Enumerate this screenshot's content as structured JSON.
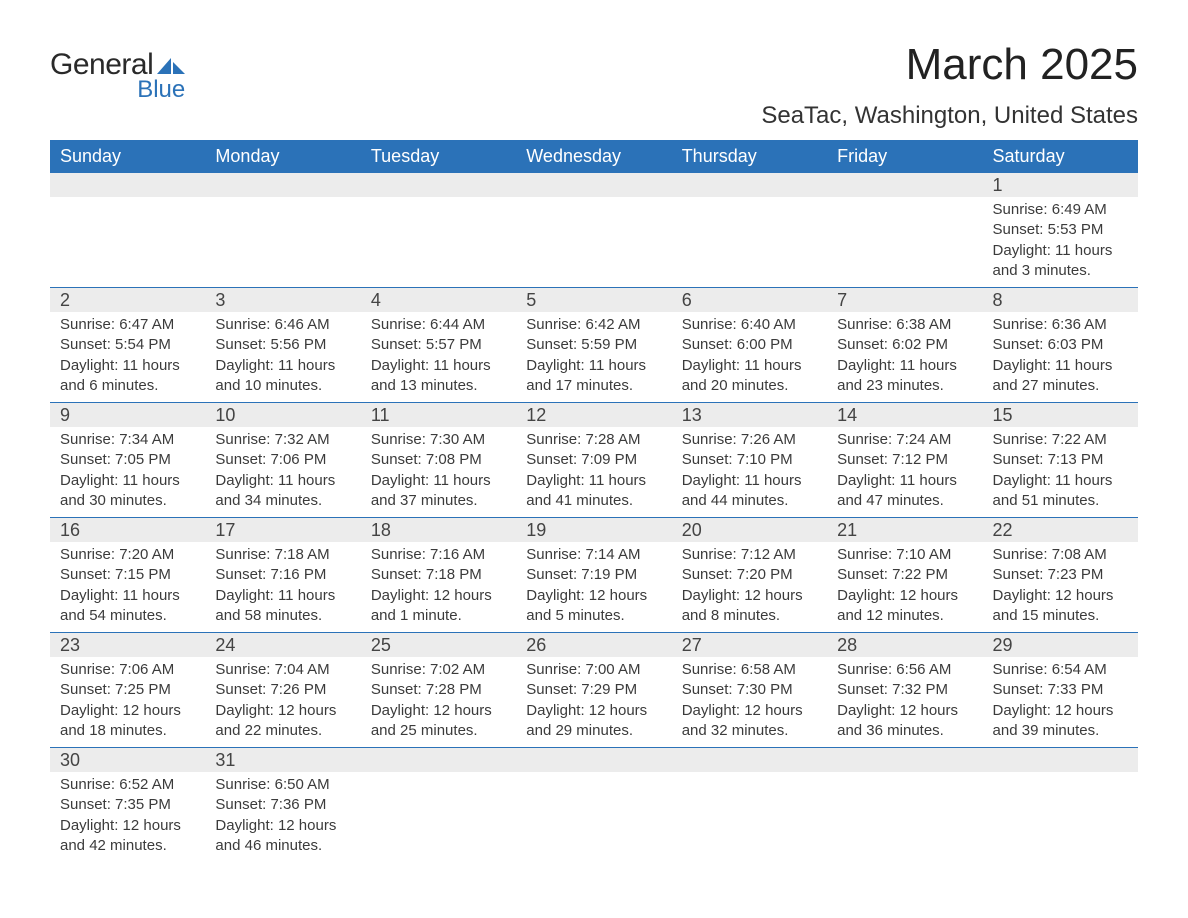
{
  "brand": {
    "line1": "General",
    "line2": "Blue",
    "logo_color": "#2b72b8"
  },
  "title": "March 2025",
  "location": "SeaTac, Washington, United States",
  "colors": {
    "header_bg": "#2b72b8",
    "header_text": "#ffffff",
    "row_divider": "#2b72b8",
    "daynum_bg": "#ececec",
    "body_text": "#3b3b3b",
    "page_bg": "#ffffff"
  },
  "typography": {
    "title_fontsize": 44,
    "location_fontsize": 24,
    "dayheader_fontsize": 18,
    "daynum_fontsize": 18,
    "detail_fontsize": 15,
    "font_family": "Arial"
  },
  "layout": {
    "columns": 7,
    "rows": 6,
    "leading_blanks": 6,
    "days_in_month": 31
  },
  "day_names": [
    "Sunday",
    "Monday",
    "Tuesday",
    "Wednesday",
    "Thursday",
    "Friday",
    "Saturday"
  ],
  "days": [
    {
      "n": 1,
      "sunrise": "6:49 AM",
      "sunset": "5:53 PM",
      "daylight": "11 hours and 3 minutes."
    },
    {
      "n": 2,
      "sunrise": "6:47 AM",
      "sunset": "5:54 PM",
      "daylight": "11 hours and 6 minutes."
    },
    {
      "n": 3,
      "sunrise": "6:46 AM",
      "sunset": "5:56 PM",
      "daylight": "11 hours and 10 minutes."
    },
    {
      "n": 4,
      "sunrise": "6:44 AM",
      "sunset": "5:57 PM",
      "daylight": "11 hours and 13 minutes."
    },
    {
      "n": 5,
      "sunrise": "6:42 AM",
      "sunset": "5:59 PM",
      "daylight": "11 hours and 17 minutes."
    },
    {
      "n": 6,
      "sunrise": "6:40 AM",
      "sunset": "6:00 PM",
      "daylight": "11 hours and 20 minutes."
    },
    {
      "n": 7,
      "sunrise": "6:38 AM",
      "sunset": "6:02 PM",
      "daylight": "11 hours and 23 minutes."
    },
    {
      "n": 8,
      "sunrise": "6:36 AM",
      "sunset": "6:03 PM",
      "daylight": "11 hours and 27 minutes."
    },
    {
      "n": 9,
      "sunrise": "7:34 AM",
      "sunset": "7:05 PM",
      "daylight": "11 hours and 30 minutes."
    },
    {
      "n": 10,
      "sunrise": "7:32 AM",
      "sunset": "7:06 PM",
      "daylight": "11 hours and 34 minutes."
    },
    {
      "n": 11,
      "sunrise": "7:30 AM",
      "sunset": "7:08 PM",
      "daylight": "11 hours and 37 minutes."
    },
    {
      "n": 12,
      "sunrise": "7:28 AM",
      "sunset": "7:09 PM",
      "daylight": "11 hours and 41 minutes."
    },
    {
      "n": 13,
      "sunrise": "7:26 AM",
      "sunset": "7:10 PM",
      "daylight": "11 hours and 44 minutes."
    },
    {
      "n": 14,
      "sunrise": "7:24 AM",
      "sunset": "7:12 PM",
      "daylight": "11 hours and 47 minutes."
    },
    {
      "n": 15,
      "sunrise": "7:22 AM",
      "sunset": "7:13 PM",
      "daylight": "11 hours and 51 minutes."
    },
    {
      "n": 16,
      "sunrise": "7:20 AM",
      "sunset": "7:15 PM",
      "daylight": "11 hours and 54 minutes."
    },
    {
      "n": 17,
      "sunrise": "7:18 AM",
      "sunset": "7:16 PM",
      "daylight": "11 hours and 58 minutes."
    },
    {
      "n": 18,
      "sunrise": "7:16 AM",
      "sunset": "7:18 PM",
      "daylight": "12 hours and 1 minute."
    },
    {
      "n": 19,
      "sunrise": "7:14 AM",
      "sunset": "7:19 PM",
      "daylight": "12 hours and 5 minutes."
    },
    {
      "n": 20,
      "sunrise": "7:12 AM",
      "sunset": "7:20 PM",
      "daylight": "12 hours and 8 minutes."
    },
    {
      "n": 21,
      "sunrise": "7:10 AM",
      "sunset": "7:22 PM",
      "daylight": "12 hours and 12 minutes."
    },
    {
      "n": 22,
      "sunrise": "7:08 AM",
      "sunset": "7:23 PM",
      "daylight": "12 hours and 15 minutes."
    },
    {
      "n": 23,
      "sunrise": "7:06 AM",
      "sunset": "7:25 PM",
      "daylight": "12 hours and 18 minutes."
    },
    {
      "n": 24,
      "sunrise": "7:04 AM",
      "sunset": "7:26 PM",
      "daylight": "12 hours and 22 minutes."
    },
    {
      "n": 25,
      "sunrise": "7:02 AM",
      "sunset": "7:28 PM",
      "daylight": "12 hours and 25 minutes."
    },
    {
      "n": 26,
      "sunrise": "7:00 AM",
      "sunset": "7:29 PM",
      "daylight": "12 hours and 29 minutes."
    },
    {
      "n": 27,
      "sunrise": "6:58 AM",
      "sunset": "7:30 PM",
      "daylight": "12 hours and 32 minutes."
    },
    {
      "n": 28,
      "sunrise": "6:56 AM",
      "sunset": "7:32 PM",
      "daylight": "12 hours and 36 minutes."
    },
    {
      "n": 29,
      "sunrise": "6:54 AM",
      "sunset": "7:33 PM",
      "daylight": "12 hours and 39 minutes."
    },
    {
      "n": 30,
      "sunrise": "6:52 AM",
      "sunset": "7:35 PM",
      "daylight": "12 hours and 42 minutes."
    },
    {
      "n": 31,
      "sunrise": "6:50 AM",
      "sunset": "7:36 PM",
      "daylight": "12 hours and 46 minutes."
    }
  ],
  "labels": {
    "sunrise": "Sunrise:",
    "sunset": "Sunset:",
    "daylight": "Daylight:"
  }
}
